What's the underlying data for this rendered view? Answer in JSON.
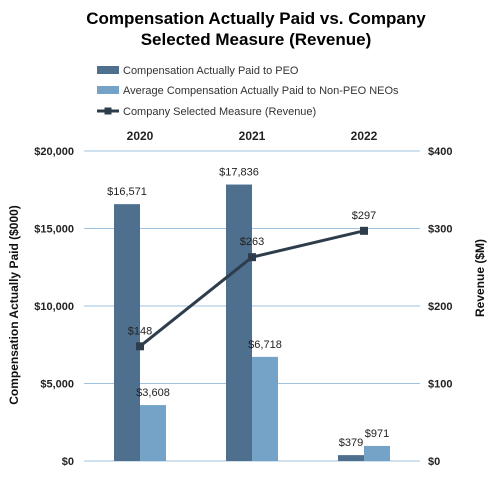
{
  "chart_data": {
    "type": "bar",
    "title_lines": [
      "Compensation Actually Paid vs. Company",
      "Selected Measure (Revenue)"
    ],
    "categories": [
      "2020",
      "2021",
      "2022"
    ],
    "series": [
      {
        "name": "Compensation Actually Paid to PEO",
        "kind": "bar",
        "axis": "left",
        "color": "#4f6f8f",
        "values": [
          16571,
          17836,
          379
        ],
        "labels": [
          "$16,571",
          "$17,836",
          "$379"
        ]
      },
      {
        "name": "Average Compensation Actually Paid to Non-PEO NEOs",
        "kind": "bar",
        "axis": "left",
        "color": "#74a3c7",
        "values": [
          3608,
          6718,
          971
        ],
        "labels": [
          "$3,608",
          "$6,718",
          "$971"
        ]
      },
      {
        "name": "Company Selected Measure (Revenue)",
        "kind": "line",
        "axis": "right",
        "color": "#2e3d4c",
        "values": [
          148,
          263,
          297
        ],
        "labels": [
          "$148",
          "$263",
          "$297"
        ]
      }
    ],
    "left_axis": {
      "label": "Compensation Actually Paid ($000)",
      "range": [
        0,
        20000
      ],
      "ticks": [
        0,
        5000,
        10000,
        15000,
        20000
      ],
      "tick_labels": [
        "$0",
        "$5,000",
        "$10,000",
        "$15,000",
        "$20,000"
      ]
    },
    "right_axis": {
      "label": "Revenue ($M)",
      "range": [
        0,
        400
      ],
      "ticks": [
        0,
        100,
        200,
        300,
        400
      ],
      "tick_labels": [
        "$0",
        "$100",
        "$200",
        "$300",
        "$400"
      ]
    },
    "grid": true,
    "legend_position": "top",
    "gridline_color": "#9fc3dd"
  }
}
